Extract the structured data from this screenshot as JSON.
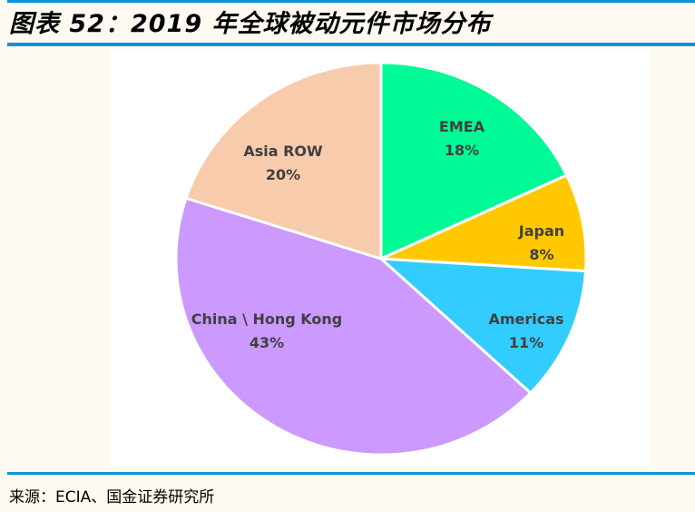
{
  "header": {
    "title": "图表 52：2019 年全球被动元件市场分布"
  },
  "footer": {
    "source": "来源：ECIA、国金证券研究所"
  },
  "colors": {
    "accent_line": "#0a93d8",
    "background": "#fefaf1"
  },
  "chart_data": {
    "type": "pie",
    "title": "2019 年全球被动元件市场分布",
    "start_angle": "12 o'clock, clockwise",
    "categories": [
      "EMEA",
      "Japan",
      "Americas",
      "China \\ Hong Kong",
      "Asia ROW"
    ],
    "values": [
      18,
      8,
      11,
      43,
      20
    ],
    "unit": "%",
    "colors": [
      "#00fa96",
      "#ffc800",
      "#33ccff",
      "#cc99ff",
      "#f8cbad"
    ],
    "labels": [
      {
        "name": "EMEA",
        "pct": "18%"
      },
      {
        "name": "Japan",
        "pct": "8%"
      },
      {
        "name": "Americas",
        "pct": "11%"
      },
      {
        "name": "China \\ Hong Kong",
        "pct": "43%"
      },
      {
        "name": "Asia ROW",
        "pct": "20%"
      }
    ]
  }
}
